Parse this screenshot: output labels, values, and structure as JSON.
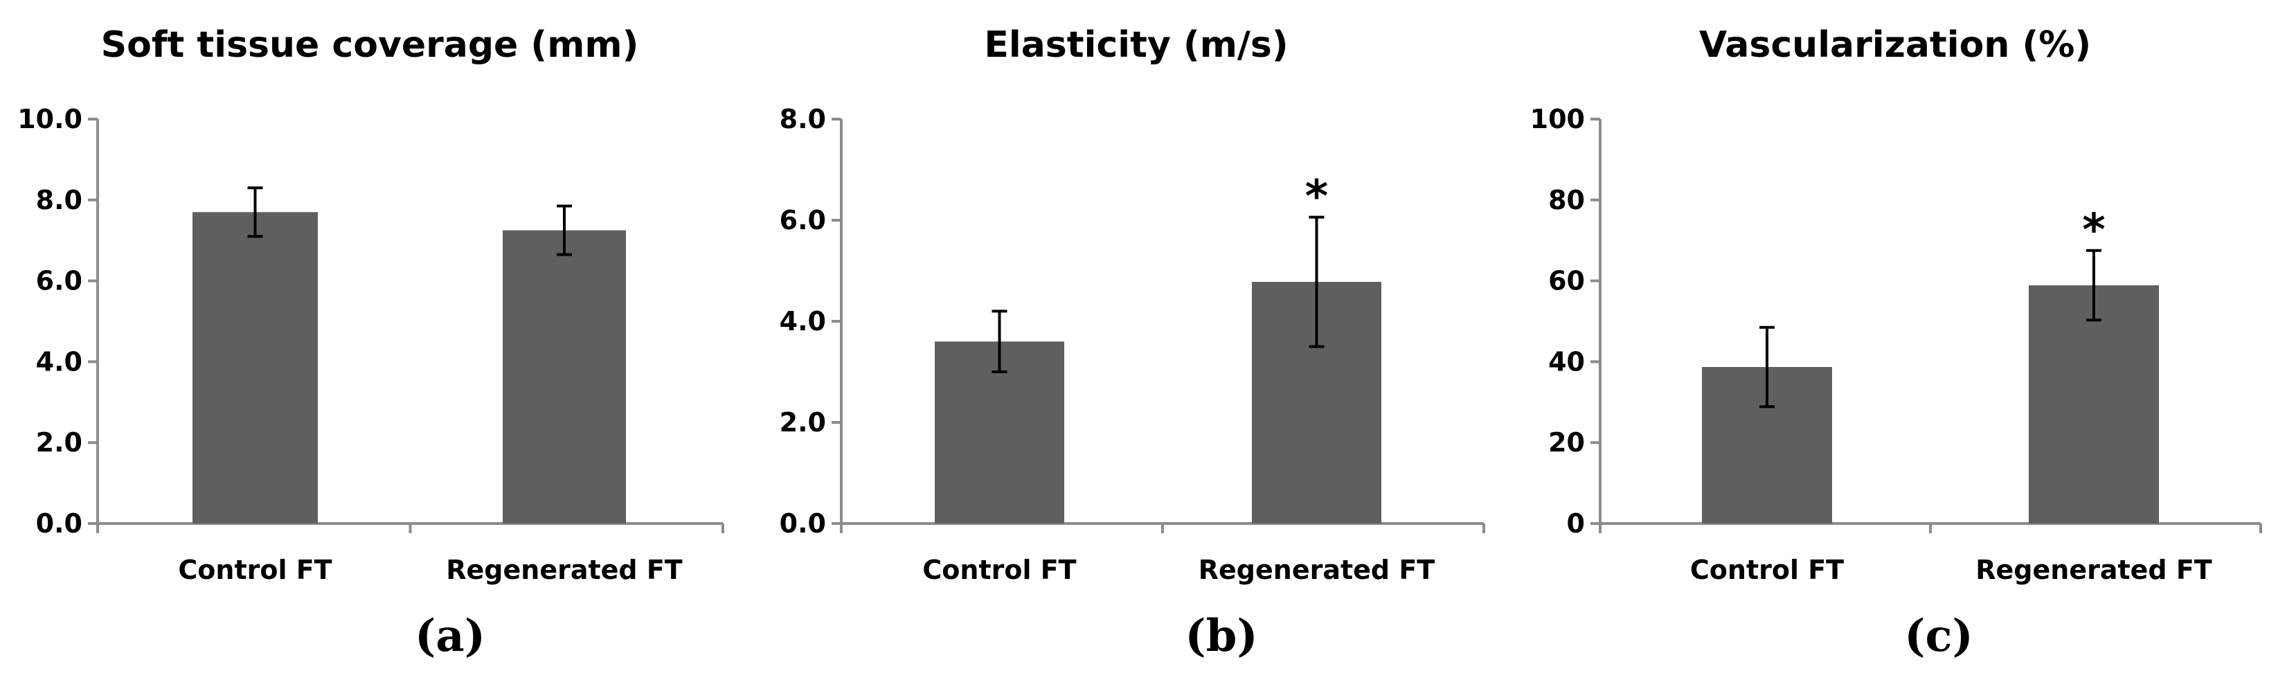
{
  "chart_data": [
    {
      "type": "bar",
      "panel_label": "(a)",
      "title": "Soft tissue coverage (mm)",
      "categories": [
        "Control FT",
        "Regenerated FT"
      ],
      "values": [
        7.7,
        7.25
      ],
      "errors": [
        0.6,
        0.6
      ],
      "annotations": [
        "",
        ""
      ],
      "ylim": [
        0,
        10
      ],
      "yticks": [
        0,
        2,
        4,
        6,
        8,
        10
      ],
      "ytick_labels": [
        "0.0",
        "2.0",
        "4.0",
        "6.0",
        "8.0",
        "10.0"
      ],
      "xlabel": "",
      "ylabel": "",
      "bar_color": "#5f5f5f"
    },
    {
      "type": "bar",
      "panel_label": "(b)",
      "title": "Elasticity (m/s)",
      "categories": [
        "Control FT",
        "Regenerated FT"
      ],
      "values": [
        3.6,
        4.78
      ],
      "errors": [
        0.6,
        1.28
      ],
      "annotations": [
        "",
        "*"
      ],
      "ylim": [
        0,
        8
      ],
      "yticks": [
        0,
        2,
        4,
        6,
        8
      ],
      "ytick_labels": [
        "0.0",
        "2.0",
        "4.0",
        "6.0",
        "8.0"
      ],
      "xlabel": "",
      "ylabel": "",
      "bar_color": "#5f5f5f"
    },
    {
      "type": "bar",
      "panel_label": "(c)",
      "title": "Vascularization (%)",
      "categories": [
        "Control FT",
        "Regenerated FT"
      ],
      "values": [
        38.7,
        58.9
      ],
      "errors": [
        9.8,
        8.6
      ],
      "annotations": [
        "",
        "*"
      ],
      "ylim": [
        0,
        100
      ],
      "yticks": [
        0,
        20,
        40,
        60,
        80,
        100
      ],
      "ytick_labels": [
        "0",
        "20",
        "40",
        "60",
        "80",
        "100"
      ],
      "xlabel": "",
      "ylabel": "",
      "bar_color": "#5f5f5f"
    }
  ]
}
